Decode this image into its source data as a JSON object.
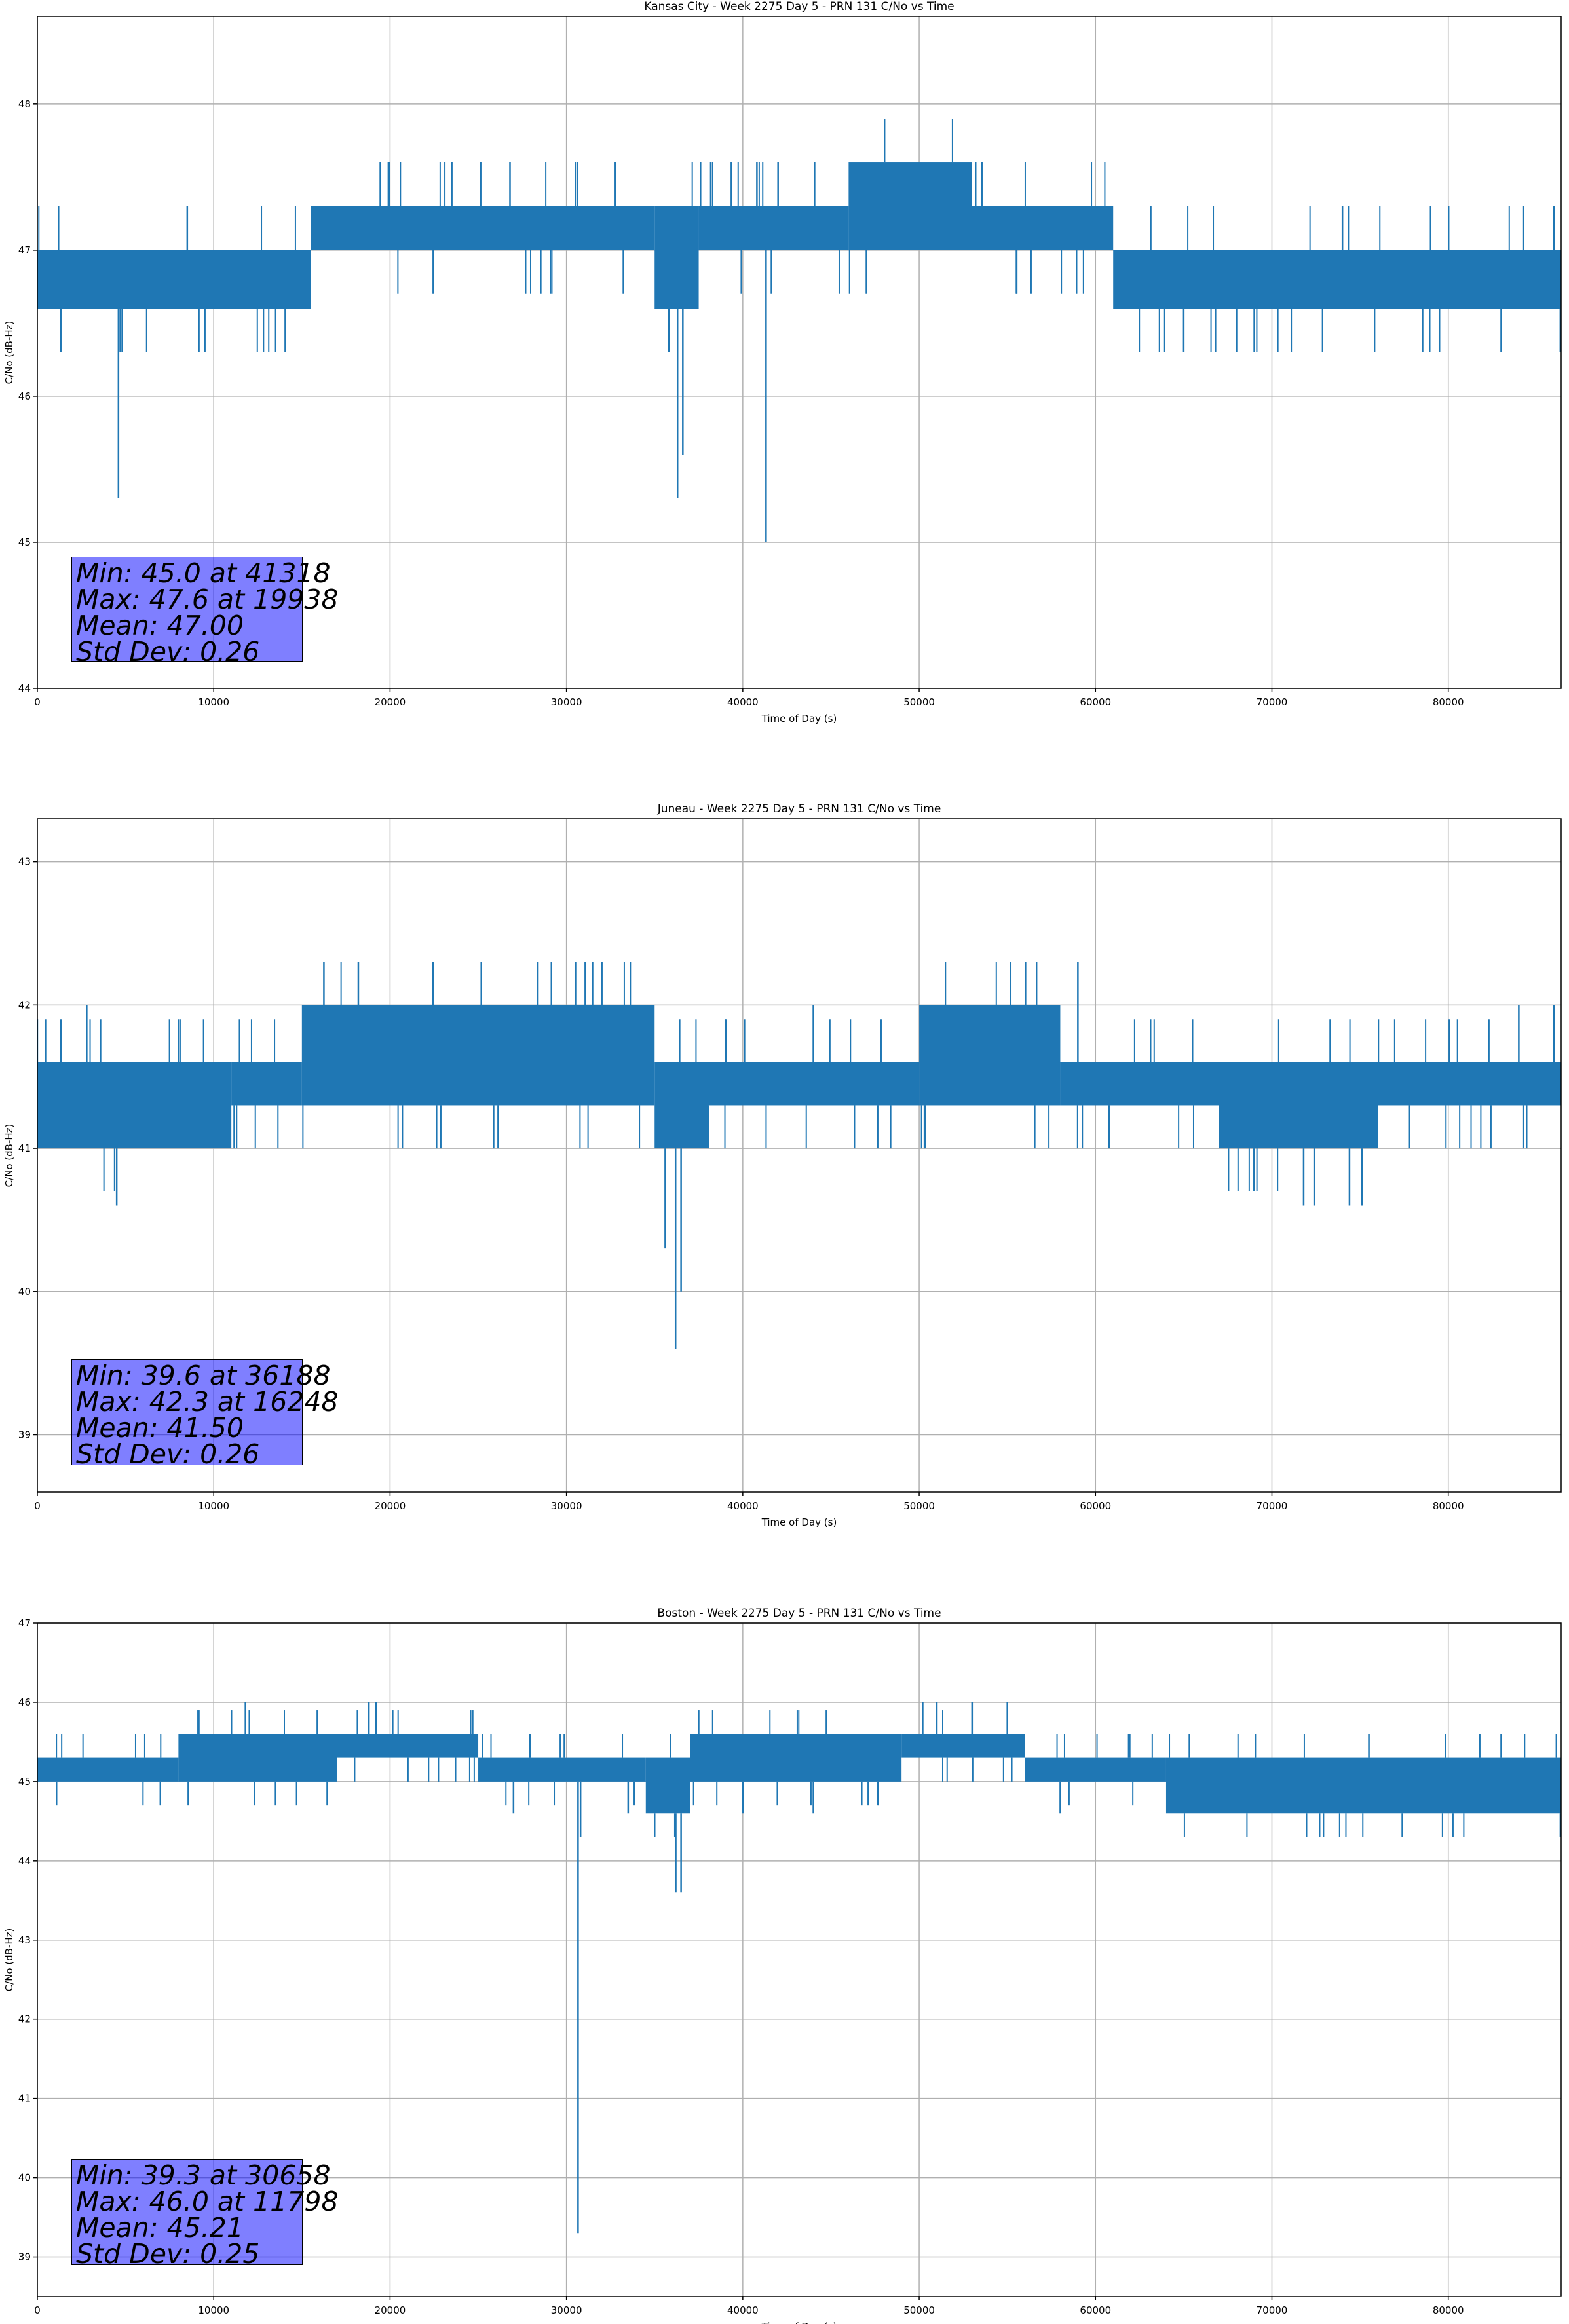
{
  "style": {
    "line_color": "#1f77b4",
    "grid_color": "#b0b0b0",
    "stats_box_color": "#8080ff"
  },
  "chart_data": [
    {
      "type": "line",
      "title": "Kansas City - Week 2275 Day 5 - PRN 131 C/No vs Time",
      "xlabel": "Time of Day (s)",
      "ylabel": "C/No (dB-Hz)",
      "xlim": [
        0,
        86400
      ],
      "ylim": [
        44.0,
        48.6
      ],
      "xticks": [
        0,
        10000,
        20000,
        30000,
        40000,
        50000,
        60000,
        70000,
        80000
      ],
      "xtick_labels": [
        "0",
        "10000",
        "20000",
        "30000",
        "40000",
        "50000",
        "60000",
        "70000",
        "80000"
      ],
      "yticks": [
        44,
        45,
        46,
        47,
        48
      ],
      "ytick_labels": [
        "44",
        "45",
        "46",
        "47",
        "48"
      ],
      "grid": true,
      "stats": [
        "Min: 45.0 at 41318",
        "Max: 47.6 at 19938",
        "Mean: 47.00",
        "Std Dev: 0.26"
      ],
      "segments": [
        {
          "x": [
            0,
            15500
          ],
          "low": 46.6,
          "high": 47.0
        },
        {
          "x": [
            15500,
            35000
          ],
          "low": 47.0,
          "high": 47.3
        },
        {
          "x": [
            35000,
            37500
          ],
          "low": 46.6,
          "high": 47.3
        },
        {
          "x": [
            37500,
            46000
          ],
          "low": 47.0,
          "high": 47.3
        },
        {
          "x": [
            46000,
            53000
          ],
          "low": 47.0,
          "high": 47.6
        },
        {
          "x": [
            53000,
            61000
          ],
          "low": 47.0,
          "high": 47.3
        },
        {
          "x": [
            61000,
            86400
          ],
          "low": 46.6,
          "high": 47.0
        }
      ],
      "excursions": [
        {
          "x": 4600,
          "y": 45.3
        },
        {
          "x": 4700,
          "y": 46.3
        },
        {
          "x": 35800,
          "y": 46.3
        },
        {
          "x": 36300,
          "y": 45.3
        },
        {
          "x": 36600,
          "y": 45.6
        },
        {
          "x": 41318,
          "y": 45.0
        },
        {
          "x": 19938,
          "y": 47.6
        },
        {
          "x": 23500,
          "y": 47.6
        },
        {
          "x": 26800,
          "y": 47.6
        },
        {
          "x": 40800,
          "y": 47.6
        },
        {
          "x": 42000,
          "y": 47.6
        },
        {
          "x": 65000,
          "y": 46.3
        },
        {
          "x": 66800,
          "y": 46.3
        },
        {
          "x": 69000,
          "y": 46.3
        },
        {
          "x": 79500,
          "y": 46.3
        },
        {
          "x": 83000,
          "y": 46.3
        },
        {
          "x": 1200,
          "y": 47.3
        },
        {
          "x": 8500,
          "y": 47.3
        },
        {
          "x": 74000,
          "y": 47.3
        },
        {
          "x": 86000,
          "y": 47.3
        }
      ]
    },
    {
      "type": "line",
      "title": "Juneau - Week 2275 Day 5 - PRN 131 C/No vs Time",
      "xlabel": "Time of Day (s)",
      "ylabel": "C/No (dB-Hz)",
      "xlim": [
        0,
        86400
      ],
      "ylim": [
        38.6,
        43.3
      ],
      "xticks": [
        0,
        10000,
        20000,
        30000,
        40000,
        50000,
        60000,
        70000,
        80000
      ],
      "xtick_labels": [
        "0",
        "10000",
        "20000",
        "30000",
        "40000",
        "50000",
        "60000",
        "70000",
        "80000"
      ],
      "yticks": [
        39,
        40,
        41,
        42,
        43
      ],
      "ytick_labels": [
        "39",
        "40",
        "41",
        "42",
        "43"
      ],
      "grid": true,
      "stats": [
        "Min: 39.6 at 36188",
        "Max: 42.3 at 16248",
        "Mean: 41.50",
        "Std Dev: 0.26"
      ],
      "segments": [
        {
          "x": [
            0,
            11000
          ],
          "low": 41.0,
          "high": 41.6
        },
        {
          "x": [
            11000,
            15000
          ],
          "low": 41.3,
          "high": 41.6
        },
        {
          "x": [
            15000,
            35000
          ],
          "low": 41.3,
          "high": 42.0
        },
        {
          "x": [
            35000,
            38000
          ],
          "low": 41.0,
          "high": 41.6
        },
        {
          "x": [
            38000,
            50000
          ],
          "low": 41.3,
          "high": 41.6
        },
        {
          "x": [
            50000,
            58000
          ],
          "low": 41.3,
          "high": 42.0
        },
        {
          "x": [
            58000,
            67000
          ],
          "low": 41.3,
          "high": 41.6
        },
        {
          "x": [
            67000,
            76000
          ],
          "low": 41.0,
          "high": 41.6
        },
        {
          "x": [
            76000,
            86400
          ],
          "low": 41.3,
          "high": 41.6
        }
      ],
      "excursions": [
        {
          "x": 4500,
          "y": 40.6
        },
        {
          "x": 35600,
          "y": 40.3
        },
        {
          "x": 36188,
          "y": 39.6
        },
        {
          "x": 36500,
          "y": 40.0
        },
        {
          "x": 16248,
          "y": 42.3
        },
        {
          "x": 18200,
          "y": 42.3
        },
        {
          "x": 59000,
          "y": 42.3
        },
        {
          "x": 2800,
          "y": 42.0
        },
        {
          "x": 44000,
          "y": 42.0
        },
        {
          "x": 71800,
          "y": 40.6
        },
        {
          "x": 72400,
          "y": 40.6
        },
        {
          "x": 74400,
          "y": 40.6
        },
        {
          "x": 75100,
          "y": 40.6
        },
        {
          "x": 84000,
          "y": 42.0
        },
        {
          "x": 86000,
          "y": 42.0
        }
      ]
    },
    {
      "type": "line",
      "title": "Boston - Week 2275 Day 5 - PRN 131 C/No vs Time",
      "xlabel": "Time of Day (s)",
      "ylabel": "C/No (dB-Hz)",
      "xlim": [
        0,
        86400
      ],
      "ylim": [
        38.5,
        47.0
      ],
      "xticks": [
        0,
        10000,
        20000,
        30000,
        40000,
        50000,
        60000,
        70000,
        80000
      ],
      "xtick_labels": [
        "0",
        "10000",
        "20000",
        "30000",
        "40000",
        "50000",
        "60000",
        "70000",
        "80000"
      ],
      "yticks": [
        39,
        40,
        41,
        42,
        43,
        44,
        45,
        46,
        47
      ],
      "ytick_labels": [
        "39",
        "40",
        "41",
        "42",
        "43",
        "44",
        "45",
        "46",
        "47"
      ],
      "grid": true,
      "stats": [
        "Min: 39.3 at 30658",
        "Max: 46.0 at 11798",
        "Mean: 45.21",
        "Std Dev: 0.25"
      ],
      "segments": [
        {
          "x": [
            0,
            8000
          ],
          "low": 45.0,
          "high": 45.3
        },
        {
          "x": [
            8000,
            17000
          ],
          "low": 45.0,
          "high": 45.6
        },
        {
          "x": [
            17000,
            25000
          ],
          "low": 45.3,
          "high": 45.6
        },
        {
          "x": [
            25000,
            34500
          ],
          "low": 45.0,
          "high": 45.3
        },
        {
          "x": [
            34500,
            37000
          ],
          "low": 44.6,
          "high": 45.3
        },
        {
          "x": [
            37000,
            49000
          ],
          "low": 45.0,
          "high": 45.6
        },
        {
          "x": [
            49000,
            56000
          ],
          "low": 45.3,
          "high": 45.6
        },
        {
          "x": [
            56000,
            64000
          ],
          "low": 45.0,
          "high": 45.3
        },
        {
          "x": [
            64000,
            86400
          ],
          "low": 44.6,
          "high": 45.3
        }
      ],
      "excursions": [
        {
          "x": 30658,
          "y": 39.3
        },
        {
          "x": 30800,
          "y": 44.3
        },
        {
          "x": 36200,
          "y": 43.6
        },
        {
          "x": 36500,
          "y": 43.6
        },
        {
          "x": 35000,
          "y": 44.3
        },
        {
          "x": 11798,
          "y": 46.0
        },
        {
          "x": 18800,
          "y": 46.0
        },
        {
          "x": 19200,
          "y": 46.0
        },
        {
          "x": 50200,
          "y": 46.0
        },
        {
          "x": 51000,
          "y": 46.0
        },
        {
          "x": 53000,
          "y": 46.0
        },
        {
          "x": 55000,
          "y": 46.0
        },
        {
          "x": 27000,
          "y": 44.6
        },
        {
          "x": 33500,
          "y": 44.6
        },
        {
          "x": 40000,
          "y": 44.6
        },
        {
          "x": 44000,
          "y": 44.6
        },
        {
          "x": 58000,
          "y": 44.6
        },
        {
          "x": 75500,
          "y": 45.6
        },
        {
          "x": 83000,
          "y": 45.6
        }
      ]
    }
  ]
}
